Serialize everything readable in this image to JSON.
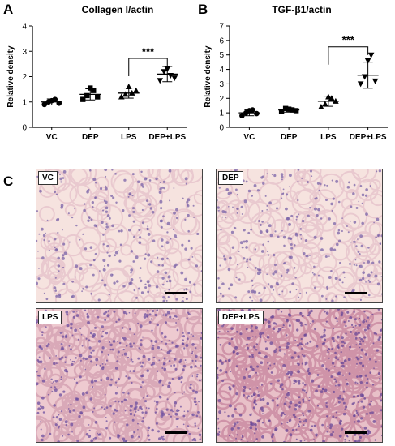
{
  "panels": {
    "a_letter": "A",
    "b_letter": "B",
    "c_letter": "C"
  },
  "chart_data": [
    {
      "type": "scatter",
      "title": "Collagen I/actin",
      "ylabel": "Relative density",
      "categories": [
        "VC",
        "DEP",
        "LPS",
        "DEP+LPS"
      ],
      "ylim": [
        0,
        4
      ],
      "yticks": [
        "0",
        "1",
        "2",
        "3",
        "4"
      ],
      "points": [
        [
          0.9,
          1.0,
          1.05,
          1.1,
          0.95
        ],
        [
          1.1,
          1.25,
          1.55,
          1.45,
          1.2
        ],
        [
          1.2,
          1.3,
          1.6,
          1.35,
          1.45
        ],
        [
          1.85,
          2.2,
          2.3,
          2.05,
          1.95
        ]
      ],
      "means": [
        1.0,
        1.3,
        1.35,
        2.1
      ],
      "sd": [
        0.12,
        0.22,
        0.2,
        0.3
      ],
      "significance": {
        "from": 2,
        "to": 3,
        "label": "***"
      },
      "grid": false
    },
    {
      "type": "scatter",
      "title": "TGF-β1/actin",
      "ylabel": "Relative density",
      "categories": [
        "VC",
        "DEP",
        "LPS",
        "DEP+LPS"
      ],
      "ylim": [
        0,
        7
      ],
      "yticks": [
        "0",
        "1",
        "2",
        "3",
        "4",
        "5",
        "6",
        "7"
      ],
      "points": [
        [
          0.8,
          1.0,
          1.15,
          1.2,
          0.95
        ],
        [
          1.1,
          1.3,
          1.25,
          1.2,
          1.15
        ],
        [
          1.4,
          1.6,
          2.1,
          2.0,
          1.8
        ],
        [
          3.0,
          3.5,
          4.6,
          5.0,
          3.2
        ]
      ],
      "means": [
        1.0,
        1.2,
        1.8,
        3.6
      ],
      "sd": [
        0.2,
        0.15,
        0.35,
        0.9
      ],
      "significance": {
        "from": 2,
        "to": 3,
        "label": "***"
      },
      "grid": false
    }
  ],
  "micrographs": [
    {
      "label": "VC",
      "bg": "#f6e3df",
      "cell": "#7a63a8",
      "tissue": "#e9c9cf",
      "density": 0.35
    },
    {
      "label": "DEP",
      "bg": "#f6e3df",
      "cell": "#7a63a8",
      "tissue": "#e9c9cf",
      "density": 0.4
    },
    {
      "label": "LPS",
      "bg": "#eecad0",
      "cell": "#6c4fa0",
      "tissue": "#d9a9b8",
      "density": 0.75
    },
    {
      "label": "DEP+LPS",
      "bg": "#e8c0c8",
      "cell": "#6a4898",
      "tissue": "#cf93a8",
      "density": 0.85
    }
  ]
}
